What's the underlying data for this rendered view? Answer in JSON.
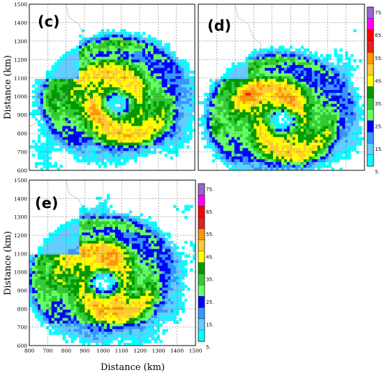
{
  "panels": [
    {
      "label": "(c)",
      "show_xticks": false,
      "show_yticks": true,
      "show_colorbar": false,
      "show_ylabel": true,
      "show_xlabel": false,
      "seed": 11
    },
    {
      "label": "(d)",
      "show_xticks": false,
      "show_yticks": false,
      "show_colorbar": true,
      "show_ylabel": false,
      "show_xlabel": false,
      "seed": 23
    },
    {
      "label": "(e)",
      "show_xticks": true,
      "show_yticks": true,
      "show_colorbar": true,
      "show_ylabel": true,
      "show_xlabel": true,
      "seed": 37
    }
  ],
  "x_ticks": [
    "800",
    "700",
    "800",
    "900",
    "1000",
    "1100",
    "1200",
    "1300",
    "1400",
    "1500"
  ],
  "y_ticks": [
    "1500",
    "1400",
    "1300",
    "1200",
    "1100",
    "1000",
    "900",
    "800",
    "700",
    "600"
  ],
  "xlabel": "Distance (km)",
  "ylabel": "Distance (km)",
  "colorbar": {
    "ticks": [
      "75.",
      "65.",
      "55.",
      "45.",
      "35.",
      "25.",
      "15.",
      "5."
    ],
    "colors": [
      "#9966cc",
      "#ff00ff",
      "#ff0000",
      "#e82020",
      "#ff9900",
      "#ffcc33",
      "#ffff00",
      "#009900",
      "#33cc33",
      "#66ff66",
      "#0000ff",
      "#3399ff",
      "#66ccff",
      "#00ffff"
    ]
  }
}
